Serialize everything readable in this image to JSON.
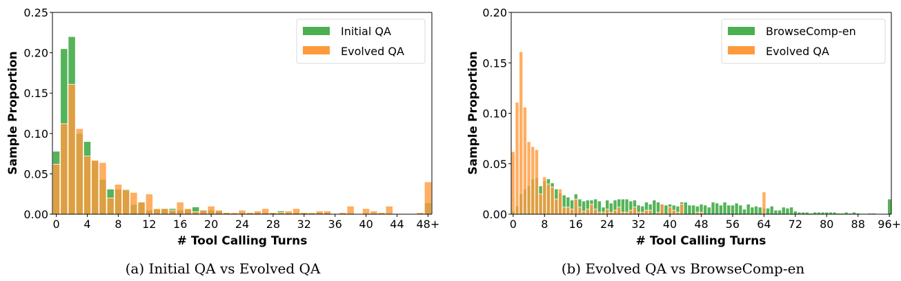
{
  "chart_data": [
    {
      "type": "bar",
      "id": "a",
      "caption": "(a) Initial QA vs Evolved QA",
      "xlabel": "# Tool Calling Turns",
      "ylabel": "Sample Proportion",
      "ylim": [
        0,
        0.25
      ],
      "yticks": [
        "0.00",
        "0.05",
        "0.10",
        "0.15",
        "0.20",
        "0.25"
      ],
      "ytick_values": [
        0,
        0.05,
        0.1,
        0.15,
        0.2,
        0.25
      ],
      "xticks": [
        "0",
        "4",
        "8",
        "12",
        "16",
        "20",
        "24",
        "28",
        "32",
        "36",
        "40",
        "44",
        "48+"
      ],
      "xtick_values": [
        0,
        4,
        8,
        12,
        16,
        20,
        24,
        28,
        32,
        36,
        40,
        44,
        48
      ],
      "xlim": [
        -0.5,
        48.5
      ],
      "legend_position": "top-right",
      "grid": false,
      "series": [
        {
          "name": "Initial QA",
          "color": "#4caf50",
          "values": [
            0.078,
            0.205,
            0.22,
            0.1,
            0.09,
            0.066,
            0.043,
            0.031,
            0.031,
            0.031,
            0.012,
            0.015,
            0.005,
            0.006,
            0.007,
            0.007,
            0.005,
            0.006,
            0.009,
            0.005,
            0.005,
            0.004,
            0.002,
            0.001,
            0.002,
            0.002,
            0.002,
            0.002,
            0.002,
            0.004,
            0.002,
            0.002,
            0.002,
            0.001,
            0.002,
            0.002,
            0.0,
            0.001,
            0.001,
            0.0,
            0.001,
            0.001,
            0.001,
            0.0,
            0.0,
            0.0,
            0.0,
            0.0,
            0.014
          ]
        },
        {
          "name": "Evolved QA",
          "color": "#ff9a3c",
          "values": [
            0.062,
            0.112,
            0.161,
            0.106,
            0.072,
            0.067,
            0.064,
            0.02,
            0.037,
            0.03,
            0.027,
            0.015,
            0.025,
            0.007,
            0.007,
            0.005,
            0.015,
            0.007,
            0.003,
            0.005,
            0.01,
            0.005,
            0.002,
            0.002,
            0.005,
            0.002,
            0.004,
            0.007,
            0.002,
            0.002,
            0.004,
            0.007,
            0.002,
            0.002,
            0.004,
            0.004,
            0.0,
            0.002,
            0.01,
            0.0,
            0.007,
            0.004,
            0.002,
            0.01,
            0.0,
            0.0,
            0.0,
            0.002,
            0.04
          ]
        }
      ]
    },
    {
      "type": "bar",
      "id": "b",
      "caption": "(b) Evolved QA vs BrowseComp-en",
      "xlabel": "# Tool Calling Turns",
      "ylabel": "Sample Proportion",
      "ylim": [
        0,
        0.2
      ],
      "yticks": [
        "0.00",
        "0.05",
        "0.10",
        "0.15",
        "0.20"
      ],
      "ytick_values": [
        0,
        0.05,
        0.1,
        0.15,
        0.2
      ],
      "xticks": [
        "0",
        "8",
        "16",
        "24",
        "32",
        "40",
        "48",
        "56",
        "64",
        "72",
        "80",
        "88",
        "96+"
      ],
      "xtick_values": [
        0,
        8,
        16,
        24,
        32,
        40,
        48,
        56,
        64,
        72,
        80,
        88,
        96
      ],
      "xlim": [
        -0.5,
        96.5
      ],
      "legend_position": "top-right",
      "grid": false,
      "series": [
        {
          "name": "BrowseComp-en",
          "color": "#4caf50",
          "values": [
            0.003,
            0.008,
            0.02,
            0.025,
            0.028,
            0.035,
            0.036,
            0.028,
            0.033,
            0.035,
            0.031,
            0.025,
            0.021,
            0.019,
            0.017,
            0.014,
            0.02,
            0.015,
            0.013,
            0.014,
            0.014,
            0.015,
            0.013,
            0.007,
            0.014,
            0.011,
            0.014,
            0.015,
            0.015,
            0.015,
            0.013,
            0.014,
            0.009,
            0.008,
            0.012,
            0.01,
            0.014,
            0.012,
            0.01,
            0.009,
            0.01,
            0.009,
            0.008,
            0.012,
            0.012,
            0.009,
            0.009,
            0.008,
            0.01,
            0.009,
            0.007,
            0.012,
            0.011,
            0.009,
            0.012,
            0.009,
            0.009,
            0.011,
            0.009,
            0.005,
            0.01,
            0.007,
            0.008,
            0.007,
            0.006,
            0.006,
            0.008,
            0.004,
            0.004,
            0.007,
            0.006,
            0.007,
            0.003,
            0.002,
            0.002,
            0.002,
            0.001,
            0.002,
            0.002,
            0.002,
            0.002,
            0.002,
            0.002,
            0.001,
            0.001,
            0.002,
            0.001,
            0.002,
            0.001,
            0.0,
            0.0,
            0.001,
            0.001,
            0.0,
            0.0,
            0.0,
            0.015
          ]
        },
        {
          "name": "Evolved QA",
          "color": "#ff9a3c",
          "values": [
            0.062,
            0.111,
            0.161,
            0.106,
            0.072,
            0.067,
            0.064,
            0.02,
            0.037,
            0.03,
            0.027,
            0.015,
            0.025,
            0.007,
            0.007,
            0.005,
            0.015,
            0.007,
            0.003,
            0.005,
            0.01,
            0.005,
            0.002,
            0.002,
            0.005,
            0.002,
            0.004,
            0.007,
            0.002,
            0.002,
            0.004,
            0.007,
            0.002,
            0.002,
            0.004,
            0.004,
            0.0,
            0.002,
            0.01,
            0.0,
            0.007,
            0.004,
            0.002,
            0.01,
            0.0,
            0.0,
            0.0,
            0.002,
            0.002,
            0.0,
            0.0,
            0.0,
            0.0,
            0.0,
            0.0,
            0.0,
            0.0,
            0.0,
            0.0,
            0.0,
            0.0,
            0.0,
            0.0,
            0.0,
            0.022,
            0.0,
            0.0,
            0.0,
            0.0,
            0.0,
            0.0,
            0.0,
            0.0,
            0.0,
            0.0,
            0.0,
            0.0,
            0.0,
            0.0,
            0.0,
            0.0,
            0.0,
            0.0,
            0.0,
            0.0,
            0.0,
            0.0,
            0.0,
            0.0,
            0.0,
            0.0,
            0.0,
            0.0,
            0.0,
            0.0,
            0.0,
            0.0
          ]
        }
      ]
    }
  ]
}
